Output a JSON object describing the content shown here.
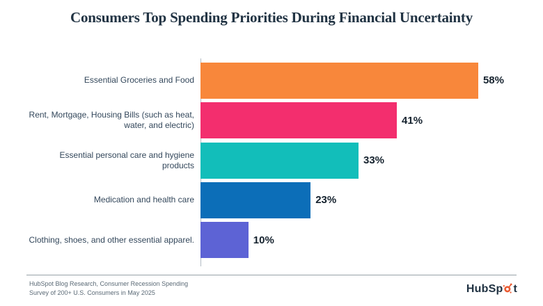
{
  "title": "Consumers Top Spending Priorities During Financial Uncertainty",
  "chart_data": {
    "type": "bar",
    "orientation": "horizontal",
    "title": "Consumers Top Spending Priorities During Financial Uncertainty",
    "categories": [
      "Essential Groceries and Food",
      "Rent, Mortgage, Housing Bills (such as heat, water, and electric)",
      "Essential personal care and hygiene products",
      "Medication and health care",
      "Clothing, shoes, and other essential apparel."
    ],
    "values": [
      58,
      41,
      33,
      23,
      10
    ],
    "value_labels": [
      "58%",
      "41%",
      "33%",
      "23%",
      "10%"
    ],
    "bar_colors": [
      "#F8873B",
      "#F32E6E",
      "#12BEBA",
      "#0C6EB8",
      "#5D63D5"
    ],
    "axis_max": 66,
    "xlabel": "",
    "ylabel": "",
    "grid": false,
    "legend": "none",
    "value_label_position": "outside-end"
  },
  "footer": {
    "source_line1": "HubSpot Blog Research, Consumer Recession Spending",
    "source_line2": "Survey of 200+ U.S. Consumers in May 2025"
  },
  "logo": {
    "name": "HubSpot",
    "text_before": "HubSp",
    "text_after": "t",
    "sprocket_color": "#ea5b32",
    "text_color": "#213343"
  },
  "colors": {
    "background": "#ffffff",
    "title": "#213343",
    "category_label": "#33475b",
    "value_label": "#15222e",
    "axis_line": "#b3bcc4",
    "divider": "#98a2a8",
    "footer_text": "#5b6a76"
  }
}
